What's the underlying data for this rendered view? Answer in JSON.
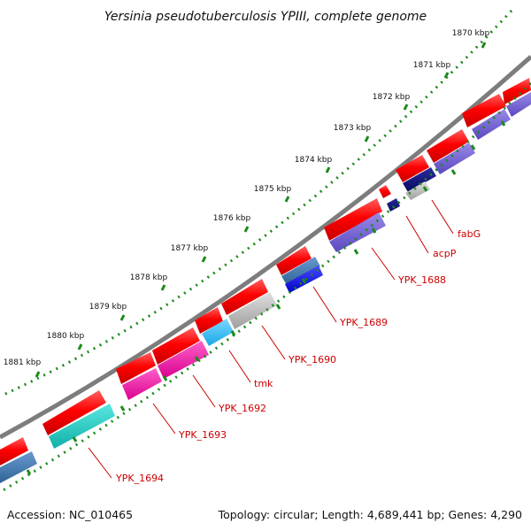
{
  "title": "Yersinia pseudotuberculosis YPIII, complete genome",
  "footer": {
    "accession": "Accession: NC_010465",
    "summary": "Topology: circular; Length: 4,689,441 bp; Genes: 4,290"
  },
  "ticks": [
    {
      "label": "1870 kbp"
    },
    {
      "label": "1871 kbp"
    },
    {
      "label": "1872 kbp"
    },
    {
      "label": "1873 kbp"
    },
    {
      "label": "1874 kbp"
    },
    {
      "label": "1875 kbp"
    },
    {
      "label": "1876 kbp"
    },
    {
      "label": "1877 kbp"
    },
    {
      "label": "1878 kbp"
    },
    {
      "label": "1879 kbp"
    },
    {
      "label": "1880 kbp"
    },
    {
      "label": "1881 kbp"
    }
  ],
  "genes": [
    {
      "name": "fabG"
    },
    {
      "name": "acpP"
    },
    {
      "name": "YPK_1688"
    },
    {
      "name": "YPK_1689"
    },
    {
      "name": "YPK_1690"
    },
    {
      "name": "tmk"
    },
    {
      "name": "YPK_1692"
    },
    {
      "name": "YPK_1693"
    },
    {
      "name": "YPK_1694"
    }
  ],
  "colors": {
    "cds": "#ff0000",
    "backbone": "#888888",
    "ruler": "#1a8a1a",
    "label": "#cc0000"
  }
}
